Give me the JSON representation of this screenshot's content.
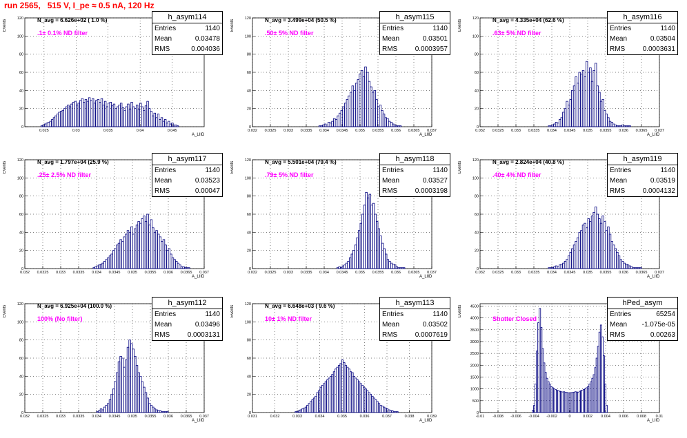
{
  "title": "run 2565,   515 V, I_pe ≈ 0.5 nA, 120 Hz",
  "y_axis_label": "Events",
  "x_axis_label": "A_LIID",
  "stat_labels": {
    "entries": "Entries",
    "mean": "Mean",
    "rms": "RMS"
  },
  "colors": {
    "histogram": "#00007f",
    "title": "#ff0000",
    "annotation": "#ff00ff",
    "grid": "#000000"
  },
  "chart_data": [
    {
      "type": "bar",
      "name": "h_asym114",
      "navg_label": "N_avg = 6.626e+02 ( 1.0 %)",
      "annotation": ".1± 0.1% ND filter",
      "stats": {
        "entries": "1140",
        "mean": "0.03478",
        "rms": "0.004036"
      },
      "xlim": [
        0.022,
        0.05
      ],
      "xticks": [
        0.025,
        0.03,
        0.035,
        0.04,
        0.045
      ],
      "xtick_labels": [
        "0.025",
        "0.03",
        "0.035",
        "0.04",
        "0.045"
      ],
      "ylim": [
        0,
        120
      ],
      "yticks": [
        0,
        20,
        40,
        60,
        80,
        100,
        120
      ],
      "bin_lo": 0.0245,
      "bin_hi": 0.046,
      "values": [
        1,
        2,
        3,
        4,
        5,
        6,
        8,
        10,
        12,
        14,
        16,
        17,
        18,
        20,
        22,
        24,
        22,
        25,
        27,
        28,
        24,
        26,
        29,
        31,
        27,
        30,
        28,
        32,
        29,
        31,
        26,
        29,
        30,
        27,
        31,
        24,
        28,
        22,
        26,
        27,
        23,
        25,
        20,
        22,
        24,
        26,
        21,
        18,
        22,
        25,
        19,
        27,
        22,
        20,
        24,
        19,
        26,
        22,
        18,
        23,
        28,
        20,
        17,
        12,
        15,
        10,
        14,
        8,
        10,
        6,
        8,
        4,
        6,
        3,
        4,
        2,
        2,
        1
      ]
    },
    {
      "type": "bar",
      "name": "h_asym115",
      "navg_label": "N_avg = 3.499e+04 (50.5 %)",
      "annotation": ".50± 5% ND filter",
      "stats": {
        "entries": "1140",
        "mean": "0.03501",
        "rms": "0.0003957"
      },
      "xlim": [
        0.032,
        0.037
      ],
      "xticks": [
        0.032,
        0.0325,
        0.033,
        0.0335,
        0.034,
        0.0345,
        0.035,
        0.0355,
        0.036,
        0.0365,
        0.037
      ],
      "xtick_labels": [
        "0.032",
        "0.0325",
        "0.033",
        "0.0335",
        "0.034",
        "0.0345",
        "0.035",
        "0.0355",
        "0.036",
        "0.0365",
        "0.037"
      ],
      "ylim": [
        0,
        120
      ],
      "yticks": [
        0,
        20,
        40,
        60,
        80,
        100,
        120
      ],
      "bin_lo": 0.03385,
      "bin_hi": 0.03615,
      "values": [
        1,
        1,
        2,
        3,
        2,
        5,
        4,
        6,
        9,
        8,
        12,
        15,
        18,
        22,
        26,
        30,
        34,
        38,
        45,
        40,
        48,
        52,
        58,
        62,
        55,
        66,
        60,
        50,
        44,
        38,
        40,
        30,
        22,
        24,
        18,
        14,
        10,
        9,
        6,
        5,
        3,
        2,
        1,
        1,
        1
      ]
    },
    {
      "type": "bar",
      "name": "h_asym116",
      "navg_label": "N_avg = 4.335e+04 (62.6 %)",
      "annotation": ".63± 5% ND filter",
      "stats": {
        "entries": "1140",
        "mean": "0.03504",
        "rms": "0.0003631"
      },
      "xlim": [
        0.032,
        0.037
      ],
      "xticks": [
        0.032,
        0.0325,
        0.033,
        0.0335,
        0.034,
        0.0345,
        0.035,
        0.0355,
        0.036,
        0.0365,
        0.037
      ],
      "xtick_labels": [
        "0.032",
        "0.0325",
        "0.033",
        "0.0335",
        "0.034",
        "0.0345",
        "0.035",
        "0.0355",
        "0.036",
        "0.0365",
        "0.037"
      ],
      "ylim": [
        0,
        120
      ],
      "yticks": [
        0,
        20,
        40,
        60,
        80,
        100,
        120
      ],
      "bin_lo": 0.0339,
      "bin_hi": 0.0362,
      "values": [
        1,
        1,
        2,
        3,
        5,
        4,
        8,
        10,
        16,
        20,
        28,
        24,
        30,
        40,
        45,
        55,
        48,
        60,
        58,
        62,
        55,
        72,
        60,
        65,
        50,
        62,
        70,
        45,
        38,
        28,
        30,
        18,
        14,
        10,
        6,
        5,
        3,
        2,
        1,
        1,
        1,
        2,
        1,
        1,
        1,
        1
      ]
    },
    {
      "type": "bar",
      "name": "h_asym117",
      "navg_label": "N_avg = 1.797e+04 (25.9 %)",
      "annotation": ".25± 2.5% ND filter",
      "stats": {
        "entries": "1140",
        "mean": "0.03523",
        "rms": "0.00047"
      },
      "xlim": [
        0.032,
        0.037
      ],
      "xticks": [
        0.032,
        0.0325,
        0.033,
        0.0335,
        0.034,
        0.0345,
        0.035,
        0.0355,
        0.036,
        0.0365,
        0.037
      ],
      "xtick_labels": [
        "0.032",
        "0.0325",
        "0.033",
        "0.0335",
        "0.034",
        "0.0345",
        "0.035",
        "0.0355",
        "0.036",
        "0.0365",
        "0.037"
      ],
      "ylim": [
        0,
        120
      ],
      "yticks": [
        0,
        20,
        40,
        60,
        80,
        100,
        120
      ],
      "bin_lo": 0.0339,
      "bin_hi": 0.0366,
      "values": [
        1,
        2,
        3,
        4,
        5,
        6,
        8,
        10,
        12,
        14,
        16,
        20,
        22,
        26,
        28,
        32,
        30,
        35,
        38,
        42,
        40,
        46,
        38,
        44,
        48,
        52,
        50,
        55,
        58,
        52,
        60,
        48,
        54,
        45,
        40,
        42,
        38,
        35,
        30,
        32,
        26,
        20,
        22,
        16,
        12,
        10,
        8,
        6,
        4,
        2,
        2,
        1,
        1,
        1
      ]
    },
    {
      "type": "bar",
      "name": "h_asym118",
      "navg_label": "N_avg = 5.501e+04 (79.4 %)",
      "annotation": ".79± 5% ND filter",
      "stats": {
        "entries": "1140",
        "mean": "0.03527",
        "rms": "0.0003198"
      },
      "xlim": [
        0.032,
        0.037
      ],
      "xticks": [
        0.032,
        0.0325,
        0.033,
        0.0335,
        0.034,
        0.0345,
        0.035,
        0.0355,
        0.036,
        0.0365,
        0.037
      ],
      "xtick_labels": [
        "0.032",
        "0.0325",
        "0.033",
        "0.0335",
        "0.034",
        "0.0345",
        "0.035",
        "0.0355",
        "0.036",
        "0.0365",
        "0.037"
      ],
      "ylim": [
        0,
        120
      ],
      "yticks": [
        0,
        20,
        40,
        60,
        80,
        100,
        120
      ],
      "bin_lo": 0.03435,
      "bin_hi": 0.03625,
      "values": [
        1,
        2,
        1,
        3,
        4,
        6,
        8,
        12,
        16,
        20,
        26,
        34,
        42,
        50,
        60,
        70,
        84,
        78,
        82,
        70,
        72,
        60,
        52,
        44,
        36,
        28,
        22,
        16,
        10,
        8,
        6,
        5,
        4,
        2,
        1,
        1,
        1,
        1
      ]
    },
    {
      "type": "bar",
      "name": "h_asym119",
      "navg_label": "N_avg = 2.824e+04 (40.8 %)",
      "annotation": ".40± 4% ND filter",
      "stats": {
        "entries": "1140",
        "mean": "0.03519",
        "rms": "0.0004132"
      },
      "xlim": [
        0.032,
        0.037
      ],
      "xticks": [
        0.032,
        0.0325,
        0.033,
        0.0335,
        0.034,
        0.0345,
        0.035,
        0.0355,
        0.036,
        0.0365,
        0.037
      ],
      "xtick_labels": [
        "0.032",
        "0.0325",
        "0.033",
        "0.0335",
        "0.034",
        "0.0345",
        "0.035",
        "0.0355",
        "0.036",
        "0.0365",
        "0.037"
      ],
      "ylim": [
        0,
        120
      ],
      "yticks": [
        0,
        20,
        40,
        60,
        80,
        100,
        120
      ],
      "bin_lo": 0.0339,
      "bin_hi": 0.0365,
      "values": [
        1,
        1,
        1,
        2,
        3,
        2,
        4,
        5,
        6,
        8,
        10,
        14,
        18,
        22,
        26,
        30,
        34,
        40,
        42,
        48,
        50,
        45,
        55,
        52,
        58,
        62,
        68,
        60,
        55,
        50,
        58,
        52,
        42,
        46,
        38,
        30,
        26,
        22,
        18,
        14,
        10,
        8,
        6,
        5,
        4,
        3,
        2,
        1,
        1,
        1,
        1,
        1
      ]
    },
    {
      "type": "bar",
      "name": "h_asym112",
      "navg_label": "N_avg = 6.925e+04 (100.0 %)",
      "annotation": "100% (No filter)",
      "stats": {
        "entries": "1140",
        "mean": "0.03496",
        "rms": "0.0003131"
      },
      "xlim": [
        0.032,
        0.037
      ],
      "xticks": [
        0.032,
        0.0325,
        0.033,
        0.0335,
        0.034,
        0.0345,
        0.035,
        0.0355,
        0.036,
        0.0365,
        0.037
      ],
      "xtick_labels": [
        "0.032",
        "0.0325",
        "0.033",
        "0.0335",
        "0.034",
        "0.0345",
        "0.035",
        "0.0355",
        "0.036",
        "0.0365",
        "0.037"
      ],
      "ylim": [
        0,
        120
      ],
      "yticks": [
        0,
        20,
        40,
        60,
        80,
        100,
        120
      ],
      "bin_lo": 0.034,
      "bin_hi": 0.036,
      "values": [
        1,
        2,
        4,
        3,
        6,
        8,
        10,
        14,
        20,
        26,
        34,
        44,
        56,
        62,
        60,
        50,
        58,
        72,
        80,
        76,
        70,
        62,
        52,
        44,
        40,
        34,
        28,
        22,
        16,
        10,
        8,
        6,
        4,
        3,
        2,
        2,
        1,
        1,
        1,
        1
      ]
    },
    {
      "type": "bar",
      "name": "h_asym113",
      "navg_label": "N_avg = 6.648e+03 ( 9.6 %)",
      "annotation": "10± 1% ND filter",
      "stats": {
        "entries": "1140",
        "mean": "0.03502",
        "rms": "0.0007619"
      },
      "xlim": [
        0.031,
        0.039
      ],
      "xticks": [
        0.031,
        0.032,
        0.033,
        0.034,
        0.035,
        0.036,
        0.037,
        0.038,
        0.039
      ],
      "xtick_labels": [
        "0.031",
        "0.032",
        "0.033",
        "0.034",
        "0.035",
        "0.036",
        "0.037",
        "0.038",
        "0.039"
      ],
      "ylim": [
        0,
        120
      ],
      "yticks": [
        0,
        20,
        40,
        60,
        80,
        100,
        120
      ],
      "bin_lo": 0.0329,
      "bin_hi": 0.0375,
      "values": [
        1,
        1,
        2,
        3,
        4,
        5,
        6,
        8,
        10,
        12,
        14,
        16,
        18,
        22,
        24,
        28,
        30,
        32,
        34,
        36,
        38,
        40,
        42,
        45,
        48,
        50,
        52,
        54,
        58,
        55,
        52,
        50,
        48,
        45,
        44,
        40,
        38,
        36,
        34,
        32,
        30,
        28,
        26,
        24,
        22,
        20,
        18,
        16,
        14,
        12,
        10,
        8,
        7,
        6,
        5,
        4,
        3,
        2,
        2,
        1,
        1,
        1
      ]
    },
    {
      "type": "bar",
      "name": "hPed_asym",
      "navg_label": "",
      "annotation": "Shutter Closed",
      "stats": {
        "entries": "65254",
        "mean": "-1.075e-05",
        "rms": "0.00263"
      },
      "xlim": [
        -0.01,
        0.01
      ],
      "xticks": [
        -0.01,
        -0.008,
        -0.006,
        -0.004,
        -0.002,
        0,
        0.002,
        0.004,
        0.006,
        0.008,
        0.01
      ],
      "xtick_labels": [
        "-0.01",
        "-0.008",
        "-0.006",
        "-0.004",
        "-0.002",
        "0",
        "0.002",
        "0.004",
        "0.006",
        "0.008",
        "0.01"
      ],
      "ylim": [
        0,
        4600
      ],
      "yticks": [
        0,
        500,
        1000,
        1500,
        2000,
        2500,
        3000,
        3500,
        4000,
        4500
      ],
      "bin_lo": -0.0042,
      "bin_hi": 0.0042,
      "values": [
        100,
        300,
        1200,
        2600,
        3800,
        4400,
        3600,
        2700,
        2100,
        1700,
        1450,
        1300,
        1200,
        1100,
        1050,
        1000,
        980,
        940,
        920,
        900,
        880,
        870,
        880,
        860,
        850,
        830,
        820,
        840,
        850,
        860,
        880,
        870,
        860,
        900,
        920,
        950,
        980,
        1000,
        1050,
        1100,
        1200,
        1300,
        1450,
        1600,
        1900,
        2300,
        2800,
        3400,
        3700,
        3200,
        2400,
        1200,
        300
      ]
    }
  ]
}
